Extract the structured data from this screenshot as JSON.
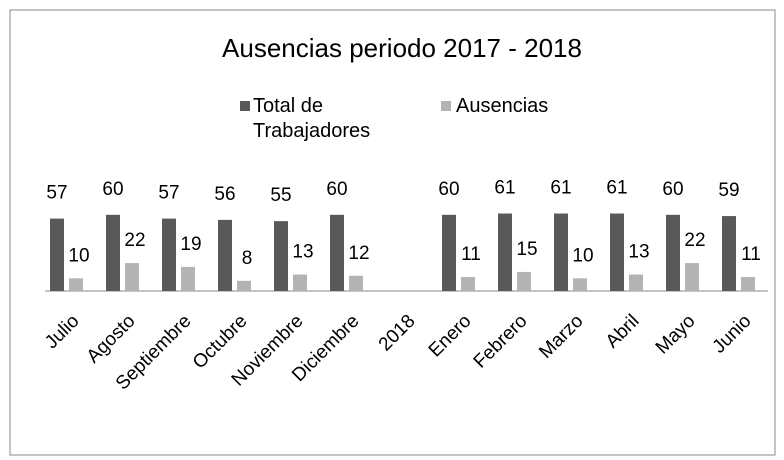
{
  "chart_data": {
    "type": "bar",
    "title": "Ausencias periodo  2017 - 2018",
    "categories": [
      "Julio",
      "Agosto",
      "Septiembre",
      "Octubre",
      "Noviembre",
      "Diciembre",
      "2018",
      "Enero",
      "Febrero",
      "Marzo",
      "Abril",
      "Mayo",
      "Junio"
    ],
    "series": [
      {
        "name": "Total de Trabajadores",
        "color": "#595959",
        "values": [
          57,
          60,
          57,
          56,
          55,
          60,
          null,
          60,
          61,
          61,
          61,
          60,
          59
        ]
      },
      {
        "name": "Ausencias",
        "color": "#b3b3b3",
        "values": [
          10,
          22,
          19,
          8,
          13,
          12,
          null,
          11,
          15,
          10,
          13,
          22,
          11
        ]
      }
    ],
    "legend": "top"
  }
}
